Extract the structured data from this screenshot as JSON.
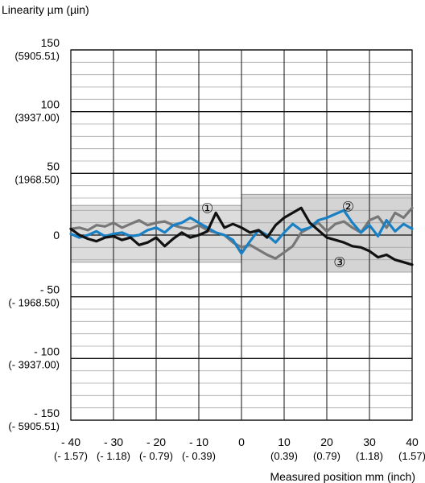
{
  "chart_data": {
    "type": "line",
    "ylabel": "Linearity µm (µin)",
    "xlabel": "Measured position mm (inch)",
    "xlim": [
      -40,
      40
    ],
    "ylim": [
      -150,
      150
    ],
    "grid": true,
    "x_ticks": [
      {
        "value": -40,
        "label": "- 40",
        "sub": "(- 1.57)"
      },
      {
        "value": -30,
        "label": "- 30",
        "sub": "(- 1.18)"
      },
      {
        "value": -20,
        "label": "- 20",
        "sub": "(- 0.79)"
      },
      {
        "value": -10,
        "label": "- 10",
        "sub": "(- 0.39)"
      },
      {
        "value": 0,
        "label": "0",
        "sub": ""
      },
      {
        "value": 10,
        "label": "10",
        "sub": "(0.39)"
      },
      {
        "value": 20,
        "label": "20",
        "sub": "(0.79)"
      },
      {
        "value": 30,
        "label": "30",
        "sub": "(1.18)"
      },
      {
        "value": 40,
        "label": "40",
        "sub": "(1.57)"
      }
    ],
    "y_ticks": [
      {
        "value": 150,
        "label": "150",
        "sub": "(5905.51)"
      },
      {
        "value": 100,
        "label": "100",
        "sub": "(3937.00)"
      },
      {
        "value": 50,
        "label": "50",
        "sub": "(1968.50)"
      },
      {
        "value": 0,
        "label": "0",
        "sub": ""
      },
      {
        "value": -50,
        "label": "- 50",
        "sub": "(- 1968.50)"
      },
      {
        "value": -100,
        "label": "- 100",
        "sub": "(- 3937.00)"
      },
      {
        "value": -150,
        "label": "- 150",
        "sub": "(- 5905.51)"
      }
    ],
    "bands": [
      {
        "x": [
          -40,
          0
        ],
        "y": [
          -22,
          24
        ],
        "color": "#dcdcdc"
      },
      {
        "x": [
          0,
          40
        ],
        "y": [
          -30,
          33
        ],
        "color": "#d4d4d4"
      }
    ],
    "annotations": [
      {
        "text": "①",
        "x": -8,
        "y": 22
      },
      {
        "text": "②",
        "x": 25,
        "y": 23
      },
      {
        "text": "③",
        "x": 23,
        "y": -22
      }
    ],
    "x": [
      -40,
      -38,
      -36,
      -34,
      -32,
      -30,
      -28,
      -26,
      -24,
      -22,
      -20,
      -18,
      -16,
      -14,
      -12,
      -10,
      -8,
      -6,
      -4,
      -2,
      0,
      2,
      4,
      6,
      8,
      10,
      12,
      14,
      16,
      18,
      20,
      22,
      24,
      26,
      28,
      30,
      32,
      34,
      36,
      38,
      40
    ],
    "series": [
      {
        "color": "#777777",
        "values": [
          5,
          6,
          4,
          8,
          7,
          10,
          6,
          9,
          12,
          8,
          10,
          11,
          8,
          6,
          5,
          8,
          4,
          2,
          0,
          -6,
          -10,
          -8,
          -12,
          -16,
          -19,
          -14,
          -9,
          2,
          6,
          10,
          3,
          9,
          11,
          6,
          2,
          12,
          15,
          6,
          18,
          14,
          22
        ]
      },
      {
        "color": "#1a80c4",
        "values": [
          1,
          -2,
          0,
          3,
          -1,
          1,
          2,
          -1,
          0,
          4,
          6,
          2,
          8,
          10,
          14,
          10,
          6,
          2,
          0,
          -4,
          -15,
          -5,
          4,
          0,
          -6,
          2,
          9,
          4,
          6,
          12,
          14,
          17,
          20,
          10,
          2,
          8,
          -1,
          12,
          3,
          9,
          5
        ]
      },
      {
        "color": "#111111",
        "values": [
          5,
          0,
          -3,
          -5,
          -2,
          -1,
          -4,
          -2,
          -8,
          -6,
          -2,
          -9,
          -3,
          2,
          -2,
          0,
          3,
          18,
          6,
          9,
          6,
          2,
          4,
          -2,
          8,
          14,
          18,
          22,
          10,
          4,
          -2,
          -4,
          -6,
          -9,
          -10,
          -13,
          -18,
          -16,
          -20,
          -22,
          -24
        ]
      }
    ]
  }
}
